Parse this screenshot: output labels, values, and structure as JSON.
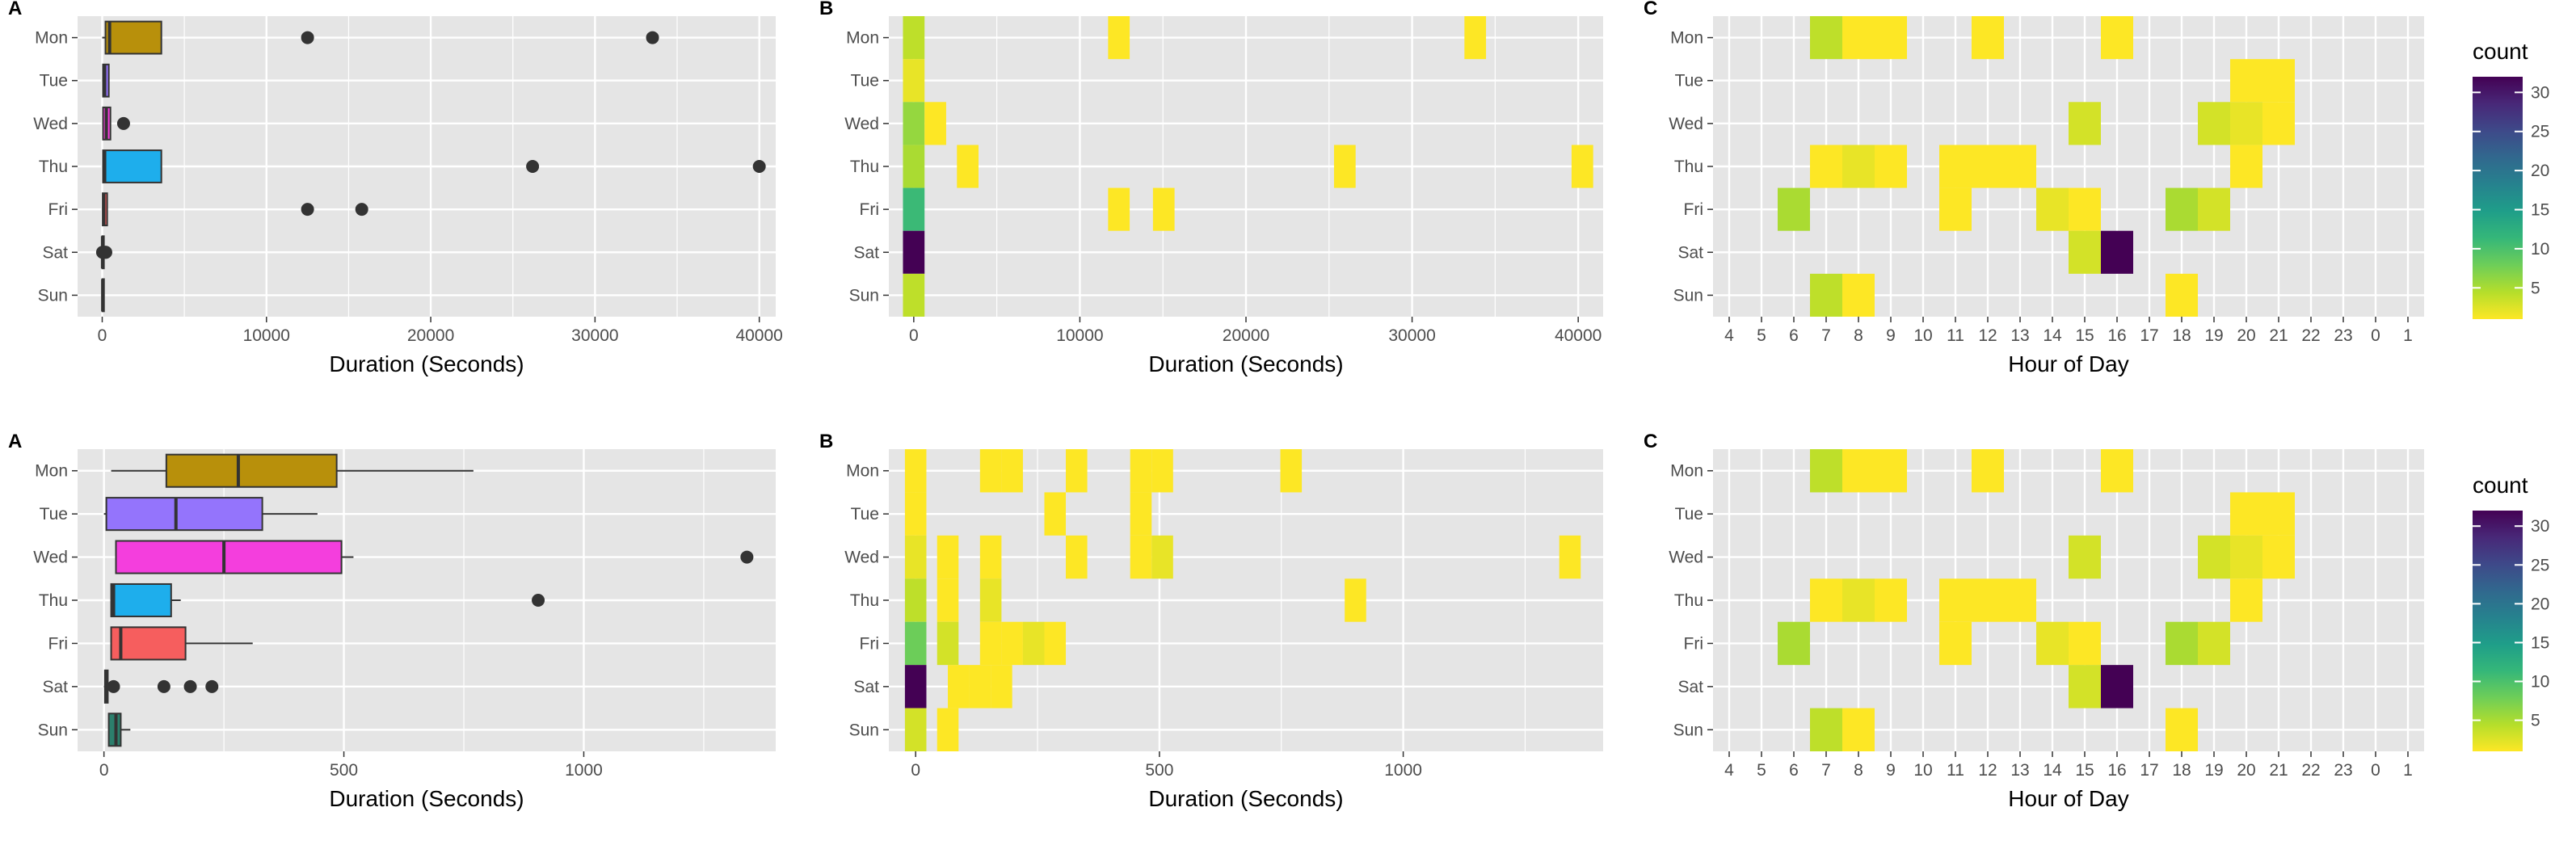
{
  "colors": {
    "panel_bg": "#e5e5e5",
    "grid": "#ffffff",
    "tick_text": "#4d4d4d",
    "outlier": "#333333",
    "viridis_stops": [
      "#fde725",
      "#b5de2b",
      "#6ece58",
      "#35b779",
      "#1f9e89",
      "#26828e",
      "#31688e",
      "#3e4989",
      "#482878",
      "#440154"
    ],
    "box_fills": {
      "Mon": "#b8900b",
      "Tue": "#9474fc",
      "Wed": "#f43edd",
      "Thu": "#1eaeec",
      "Fri": "#f65e5e",
      "Sat": "#28b36a",
      "Sun": "#2c7f6c"
    }
  },
  "chart_data": [
    {
      "id": "top-A",
      "panel_tag": "A",
      "type": "boxplot",
      "orientation": "horizontal",
      "xlabel": "Duration (Seconds)",
      "categories": [
        "Mon",
        "Tue",
        "Wed",
        "Thu",
        "Fri",
        "Sat",
        "Sun"
      ],
      "xlim": [
        -1500,
        41000
      ],
      "xticks": [
        0,
        10000,
        20000,
        30000,
        40000
      ],
      "xtick_labels": [
        "0",
        "10000",
        "20000",
        "30000",
        "40000"
      ],
      "boxes": [
        {
          "day": "Mon",
          "whisker_low": 0,
          "q1": 200,
          "median": 450,
          "q3": 3600,
          "whisker_high": 3600,
          "outliers": [
            12500,
            33500
          ]
        },
        {
          "day": "Tue",
          "whisker_low": 0,
          "q1": 50,
          "median": 150,
          "q3": 400,
          "whisker_high": 400,
          "outliers": []
        },
        {
          "day": "Wed",
          "whisker_low": 0,
          "q1": 50,
          "median": 250,
          "q3": 500,
          "whisker_high": 500,
          "outliers": [
            1300
          ]
        },
        {
          "day": "Thu",
          "whisker_low": 0,
          "q1": 50,
          "median": 150,
          "q3": 3600,
          "whisker_high": 3600,
          "outliers": [
            26200,
            40000
          ]
        },
        {
          "day": "Fri",
          "whisker_low": 0,
          "q1": 30,
          "median": 100,
          "q3": 300,
          "whisker_high": 300,
          "outliers": [
            12500,
            15800
          ]
        },
        {
          "day": "Sat",
          "whisker_low": 0,
          "q1": 5,
          "median": 20,
          "q3": 30,
          "whisker_high": 30,
          "outliers": [
            20,
            120,
            180,
            220
          ]
        },
        {
          "day": "Sun",
          "whisker_low": 0,
          "q1": 10,
          "median": 30,
          "q3": 40,
          "whisker_high": 60,
          "outliers": []
        }
      ]
    },
    {
      "id": "top-B",
      "panel_tag": "B",
      "type": "heatmap",
      "xlabel": "Duration (Seconds)",
      "categories": [
        "Mon",
        "Tue",
        "Wed",
        "Thu",
        "Fri",
        "Sat",
        "Sun"
      ],
      "xlim": [
        -1500,
        41500
      ],
      "bin_width": 1300,
      "xticks": [
        0,
        10000,
        20000,
        30000,
        40000
      ],
      "xtick_labels": [
        "0",
        "10000",
        "20000",
        "30000",
        "40000"
      ],
      "color_range": [
        1,
        32
      ],
      "cells": [
        {
          "day": "Mon",
          "x": 0,
          "count": 4
        },
        {
          "day": "Mon",
          "x": 12350,
          "count": 1
        },
        {
          "day": "Mon",
          "x": 33800,
          "count": 1
        },
        {
          "day": "Tue",
          "x": 0,
          "count": 2
        },
        {
          "day": "Wed",
          "x": 0,
          "count": 6
        },
        {
          "day": "Wed",
          "x": 1300,
          "count": 1
        },
        {
          "day": "Thu",
          "x": 0,
          "count": 5
        },
        {
          "day": "Thu",
          "x": 3250,
          "count": 1
        },
        {
          "day": "Thu",
          "x": 25950,
          "count": 1
        },
        {
          "day": "Thu",
          "x": 40250,
          "count": 1
        },
        {
          "day": "Fri",
          "x": 0,
          "count": 11
        },
        {
          "day": "Fri",
          "x": 12350,
          "count": 1
        },
        {
          "day": "Fri",
          "x": 15050,
          "count": 1
        },
        {
          "day": "Sat",
          "x": 0,
          "count": 32
        },
        {
          "day": "Sun",
          "x": 0,
          "count": 4
        }
      ]
    },
    {
      "id": "top-C",
      "panel_tag": "C",
      "type": "heatmap",
      "xlabel": "Hour of Day",
      "categories": [
        "Mon",
        "Tue",
        "Wed",
        "Thu",
        "Fri",
        "Sat",
        "Sun"
      ],
      "x_categories": [
        "4",
        "5",
        "6",
        "7",
        "8",
        "9",
        "10",
        "11",
        "12",
        "13",
        "14",
        "15",
        "16",
        "17",
        "18",
        "19",
        "20",
        "21",
        "22",
        "23",
        "0",
        "1"
      ],
      "color_range": [
        1,
        32
      ],
      "cells": [
        {
          "day": "Mon",
          "hour": "7",
          "count": 4
        },
        {
          "day": "Mon",
          "hour": "8",
          "count": 1
        },
        {
          "day": "Mon",
          "hour": "9",
          "count": 1
        },
        {
          "day": "Mon",
          "hour": "12",
          "count": 1
        },
        {
          "day": "Mon",
          "hour": "16",
          "count": 1
        },
        {
          "day": "Tue",
          "hour": "20",
          "count": 1
        },
        {
          "day": "Tue",
          "hour": "21",
          "count": 1
        },
        {
          "day": "Wed",
          "hour": "15",
          "count": 3
        },
        {
          "day": "Wed",
          "hour": "19",
          "count": 3
        },
        {
          "day": "Wed",
          "hour": "20",
          "count": 2
        },
        {
          "day": "Wed",
          "hour": "21",
          "count": 1
        },
        {
          "day": "Thu",
          "hour": "7",
          "count": 1
        },
        {
          "day": "Thu",
          "hour": "8",
          "count": 2
        },
        {
          "day": "Thu",
          "hour": "9",
          "count": 1
        },
        {
          "day": "Thu",
          "hour": "11",
          "count": 1
        },
        {
          "day": "Thu",
          "hour": "12",
          "count": 1
        },
        {
          "day": "Thu",
          "hour": "13",
          "count": 1
        },
        {
          "day": "Thu",
          "hour": "20",
          "count": 1
        },
        {
          "day": "Fri",
          "hour": "6",
          "count": 5
        },
        {
          "day": "Fri",
          "hour": "11",
          "count": 1
        },
        {
          "day": "Fri",
          "hour": "14",
          "count": 2
        },
        {
          "day": "Fri",
          "hour": "15",
          "count": 1
        },
        {
          "day": "Fri",
          "hour": "18",
          "count": 5
        },
        {
          "day": "Fri",
          "hour": "19",
          "count": 3
        },
        {
          "day": "Sat",
          "hour": "15",
          "count": 3
        },
        {
          "day": "Sat",
          "hour": "16",
          "count": 32
        },
        {
          "day": "Sun",
          "hour": "7",
          "count": 4
        },
        {
          "day": "Sun",
          "hour": "8",
          "count": 1
        },
        {
          "day": "Sun",
          "hour": "18",
          "count": 1
        }
      ]
    },
    {
      "id": "bottom-A",
      "panel_tag": "A",
      "type": "boxplot",
      "orientation": "horizontal",
      "xlabel": "Duration (Seconds)",
      "categories": [
        "Mon",
        "Tue",
        "Wed",
        "Thu",
        "Fri",
        "Sat",
        "Sun"
      ],
      "xlim": [
        -55,
        1400
      ],
      "xticks": [
        0,
        500,
        1000
      ],
      "xtick_labels": [
        "0",
        "500",
        "1000"
      ],
      "boxes": [
        {
          "day": "Mon",
          "whisker_low": 15,
          "q1": 130,
          "median": 280,
          "q3": 485,
          "whisker_high": 770,
          "outliers": []
        },
        {
          "day": "Tue",
          "whisker_low": 0,
          "q1": 5,
          "median": 150,
          "q3": 330,
          "whisker_high": 445,
          "outliers": []
        },
        {
          "day": "Wed",
          "whisker_low": 25,
          "q1": 25,
          "median": 250,
          "q3": 495,
          "whisker_high": 520,
          "outliers": [
            1340
          ]
        },
        {
          "day": "Thu",
          "whisker_low": 15,
          "q1": 15,
          "median": 20,
          "q3": 140,
          "whisker_high": 160,
          "outliers": [
            905
          ]
        },
        {
          "day": "Fri",
          "whisker_low": 15,
          "q1": 15,
          "median": 35,
          "q3": 170,
          "whisker_high": 310,
          "outliers": []
        },
        {
          "day": "Sat",
          "whisker_low": 0,
          "q1": 2,
          "median": 5,
          "q3": 8,
          "whisker_high": 15,
          "outliers": [
            20,
            125,
            180,
            225
          ]
        },
        {
          "day": "Sun",
          "whisker_low": 10,
          "q1": 10,
          "median": 25,
          "q3": 35,
          "whisker_high": 55,
          "outliers": []
        }
      ]
    },
    {
      "id": "bottom-B",
      "panel_tag": "B",
      "type": "heatmap",
      "xlabel": "Duration (Seconds)",
      "categories": [
        "Mon",
        "Tue",
        "Wed",
        "Thu",
        "Fri",
        "Sat",
        "Sun"
      ],
      "xlim": [
        -55,
        1410
      ],
      "bin_width": 44,
      "xticks": [
        0,
        500,
        1000
      ],
      "xtick_labels": [
        "0",
        "500",
        "1000"
      ],
      "color_range": [
        1,
        32
      ],
      "cells": [
        {
          "day": "Mon",
          "x": 0,
          "count": 1
        },
        {
          "day": "Mon",
          "x": 154,
          "count": 1
        },
        {
          "day": "Mon",
          "x": 198,
          "count": 1
        },
        {
          "day": "Mon",
          "x": 330,
          "count": 1
        },
        {
          "day": "Mon",
          "x": 462,
          "count": 1
        },
        {
          "day": "Mon",
          "x": 506,
          "count": 1
        },
        {
          "day": "Mon",
          "x": 770,
          "count": 1
        },
        {
          "day": "Tue",
          "x": 0,
          "count": 1
        },
        {
          "day": "Tue",
          "x": 286,
          "count": 1
        },
        {
          "day": "Tue",
          "x": 462,
          "count": 1
        },
        {
          "day": "Wed",
          "x": 0,
          "count": 2
        },
        {
          "day": "Wed",
          "x": 66,
          "count": 1
        },
        {
          "day": "Wed",
          "x": 154,
          "count": 1
        },
        {
          "day": "Wed",
          "x": 330,
          "count": 1
        },
        {
          "day": "Wed",
          "x": 462,
          "count": 1
        },
        {
          "day": "Wed",
          "x": 506,
          "count": 2
        },
        {
          "day": "Wed",
          "x": 1342,
          "count": 1
        },
        {
          "day": "Thu",
          "x": 0,
          "count": 4
        },
        {
          "day": "Thu",
          "x": 66,
          "count": 1
        },
        {
          "day": "Thu",
          "x": 154,
          "count": 2
        },
        {
          "day": "Thu",
          "x": 902,
          "count": 1
        },
        {
          "day": "Fri",
          "x": 0,
          "count": 8
        },
        {
          "day": "Fri",
          "x": 66,
          "count": 3
        },
        {
          "day": "Fri",
          "x": 154,
          "count": 1
        },
        {
          "day": "Fri",
          "x": 198,
          "count": 1
        },
        {
          "day": "Fri",
          "x": 242,
          "count": 2
        },
        {
          "day": "Fri",
          "x": 286,
          "count": 1
        },
        {
          "day": "Sat",
          "x": 0,
          "count": 32
        },
        {
          "day": "Sat",
          "x": 88,
          "count": 1
        },
        {
          "day": "Sat",
          "x": 132,
          "count": 1
        },
        {
          "day": "Sat",
          "x": 176,
          "count": 1
        },
        {
          "day": "Sun",
          "x": 0,
          "count": 3
        },
        {
          "day": "Sun",
          "x": 66,
          "count": 1
        }
      ]
    },
    {
      "id": "bottom-C",
      "panel_tag": "C",
      "type": "heatmap",
      "xlabel": "Hour of Day",
      "categories": [
        "Mon",
        "Tue",
        "Wed",
        "Thu",
        "Fri",
        "Sat",
        "Sun"
      ],
      "x_categories": [
        "4",
        "5",
        "6",
        "7",
        "8",
        "9",
        "10",
        "11",
        "12",
        "13",
        "14",
        "15",
        "16",
        "17",
        "18",
        "19",
        "20",
        "21",
        "22",
        "23",
        "0",
        "1"
      ],
      "color_range": [
        1,
        32
      ],
      "cells": [
        {
          "day": "Mon",
          "hour": "7",
          "count": 4
        },
        {
          "day": "Mon",
          "hour": "8",
          "count": 1
        },
        {
          "day": "Mon",
          "hour": "9",
          "count": 1
        },
        {
          "day": "Mon",
          "hour": "12",
          "count": 1
        },
        {
          "day": "Mon",
          "hour": "16",
          "count": 1
        },
        {
          "day": "Tue",
          "hour": "20",
          "count": 1
        },
        {
          "day": "Tue",
          "hour": "21",
          "count": 1
        },
        {
          "day": "Wed",
          "hour": "15",
          "count": 3
        },
        {
          "day": "Wed",
          "hour": "19",
          "count": 3
        },
        {
          "day": "Wed",
          "hour": "20",
          "count": 2
        },
        {
          "day": "Wed",
          "hour": "21",
          "count": 1
        },
        {
          "day": "Thu",
          "hour": "7",
          "count": 1
        },
        {
          "day": "Thu",
          "hour": "8",
          "count": 2
        },
        {
          "day": "Thu",
          "hour": "9",
          "count": 1
        },
        {
          "day": "Thu",
          "hour": "11",
          "count": 1
        },
        {
          "day": "Thu",
          "hour": "12",
          "count": 1
        },
        {
          "day": "Thu",
          "hour": "13",
          "count": 1
        },
        {
          "day": "Thu",
          "hour": "20",
          "count": 1
        },
        {
          "day": "Fri",
          "hour": "6",
          "count": 5
        },
        {
          "day": "Fri",
          "hour": "11",
          "count": 1
        },
        {
          "day": "Fri",
          "hour": "14",
          "count": 2
        },
        {
          "day": "Fri",
          "hour": "15",
          "count": 1
        },
        {
          "day": "Fri",
          "hour": "18",
          "count": 5
        },
        {
          "day": "Fri",
          "hour": "19",
          "count": 3
        },
        {
          "day": "Sat",
          "hour": "15",
          "count": 3
        },
        {
          "day": "Sat",
          "hour": "16",
          "count": 32
        },
        {
          "day": "Sun",
          "hour": "7",
          "count": 4
        },
        {
          "day": "Sun",
          "hour": "8",
          "count": 1
        },
        {
          "day": "Sun",
          "hour": "18",
          "count": 1
        }
      ]
    }
  ],
  "legends": [
    {
      "id": "top-legend",
      "title": "count",
      "range": [
        1,
        32
      ],
      "ticks": [
        5,
        10,
        15,
        20,
        25,
        30
      ],
      "tick_labels": [
        "5",
        "10",
        "15",
        "20",
        "25",
        "30"
      ]
    },
    {
      "id": "bottom-legend",
      "title": "count",
      "range": [
        1,
        32
      ],
      "ticks": [
        5,
        10,
        15,
        20,
        25,
        30
      ],
      "tick_labels": [
        "5",
        "10",
        "15",
        "20",
        "25",
        "30"
      ]
    }
  ]
}
